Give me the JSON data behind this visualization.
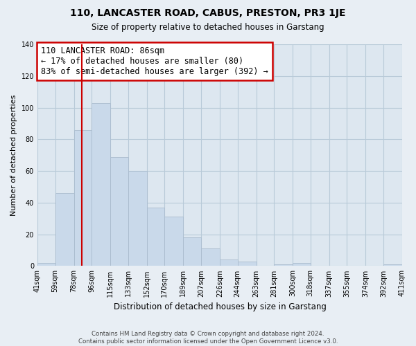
{
  "title": "110, LANCASTER ROAD, CABUS, PRESTON, PR3 1JE",
  "subtitle": "Size of property relative to detached houses in Garstang",
  "xlabel": "Distribution of detached houses by size in Garstang",
  "ylabel": "Number of detached properties",
  "bin_edges": [
    41,
    59,
    78,
    96,
    115,
    133,
    152,
    170,
    189,
    207,
    226,
    244,
    263,
    281,
    300,
    318,
    337,
    355,
    374,
    392,
    411
  ],
  "bin_labels": [
    "41sqm",
    "59sqm",
    "78sqm",
    "96sqm",
    "115sqm",
    "133sqm",
    "152sqm",
    "170sqm",
    "189sqm",
    "207sqm",
    "226sqm",
    "244sqm",
    "263sqm",
    "281sqm",
    "300sqm",
    "318sqm",
    "337sqm",
    "355sqm",
    "374sqm",
    "392sqm",
    "411sqm"
  ],
  "counts": [
    2,
    46,
    86,
    103,
    69,
    60,
    37,
    31,
    18,
    11,
    4,
    3,
    0,
    1,
    2,
    0,
    0,
    0,
    0,
    1
  ],
  "bar_color": "#c9d9ea",
  "bar_edge_color": "#aabcce",
  "vline_x": 86,
  "vline_color": "#cc0000",
  "annotation_line1": "110 LANCASTER ROAD: 86sqm",
  "annotation_line2": "← 17% of detached houses are smaller (80)",
  "annotation_line3": "83% of semi-detached houses are larger (392) →",
  "annotation_box_edge": "#cc0000",
  "annotation_box_facecolor": "#ffffff",
  "ylim": [
    0,
    140
  ],
  "yticks": [
    0,
    20,
    40,
    60,
    80,
    100,
    120,
    140
  ],
  "footer_line1": "Contains HM Land Registry data © Crown copyright and database right 2024.",
  "footer_line2": "Contains public sector information licensed under the Open Government Licence v3.0.",
  "bg_color": "#e8eef4",
  "plot_bg_color": "#dde7f0",
  "grid_color": "#b8cad8"
}
